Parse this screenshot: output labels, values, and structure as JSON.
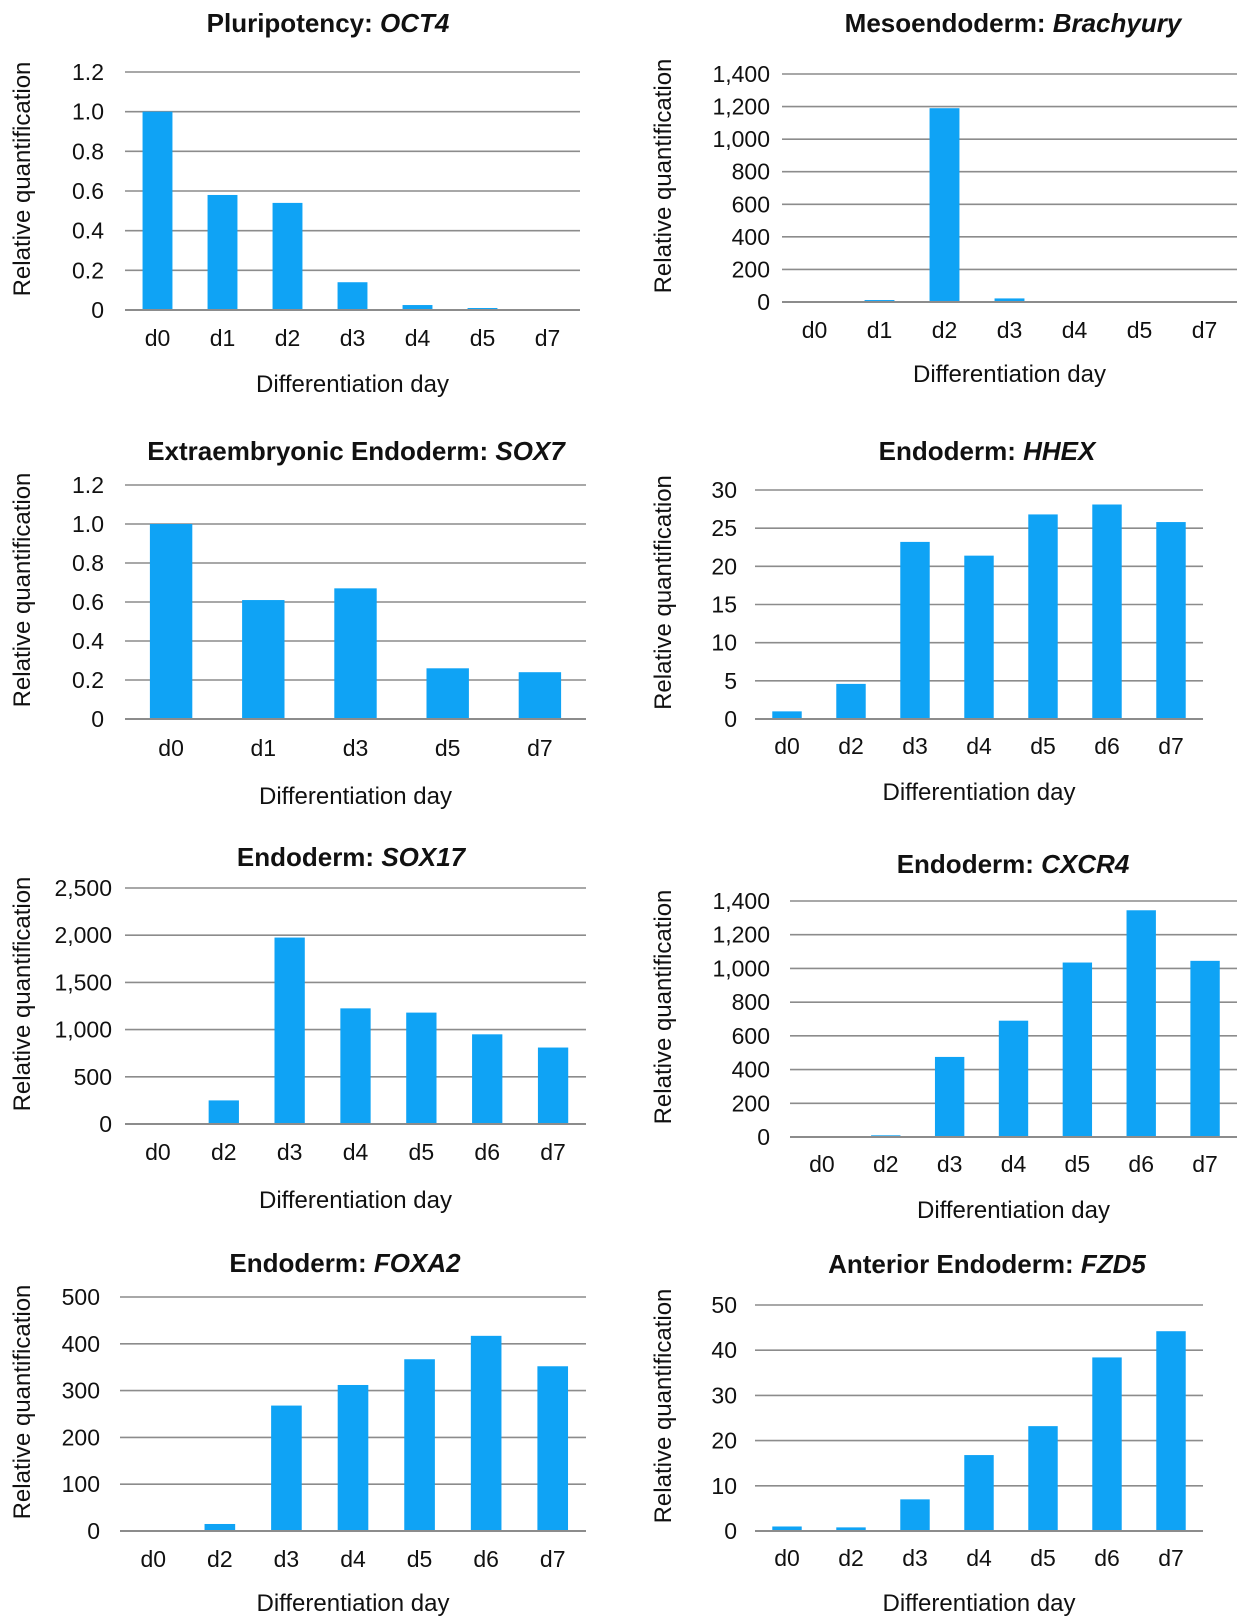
{
  "colors": {
    "bar": "#0fa3f5",
    "grid": "#8c8c8c",
    "text": "#111111"
  },
  "chart_data": [
    {
      "type": "bar",
      "title_prefix": "Pluripotency: ",
      "title_gene": "OCT4",
      "xlabel": "Differentiation day",
      "ylabel": "Relative quantification",
      "categories": [
        "d0",
        "d1",
        "d2",
        "d3",
        "d4",
        "d5",
        "d7"
      ],
      "values": [
        1.0,
        0.58,
        0.54,
        0.14,
        0.025,
        0.01,
        0.004
      ],
      "ylim": [
        0,
        1.2
      ],
      "yticks": [
        "0",
        "0.2",
        "0.4",
        "0.6",
        "0.8",
        "1.0",
        "1.2"
      ],
      "grid": true
    },
    {
      "type": "bar",
      "title_prefix": "Mesoendoderm: ",
      "title_gene": "Brachyury",
      "xlabel": "Differentiation day",
      "ylabel": "Relative quantification",
      "categories": [
        "d0",
        "d1",
        "d2",
        "d3",
        "d4",
        "d5",
        "d7"
      ],
      "values": [
        1,
        12,
        1190,
        22,
        4,
        1,
        1
      ],
      "ylim": [
        0,
        1400
      ],
      "yticks": [
        "0",
        "200",
        "400",
        "600",
        "800",
        "1,000",
        "1,200",
        "1,400"
      ],
      "grid": true
    },
    {
      "type": "bar",
      "title_prefix": "Extraembryonic Endoderm: ",
      "title_gene": "SOX7",
      "xlabel": "Differentiation day",
      "ylabel": "Relative quantification",
      "categories": [
        "d0",
        "d1",
        "d3",
        "d5",
        "d7"
      ],
      "values": [
        1.0,
        0.61,
        0.67,
        0.26,
        0.24
      ],
      "ylim": [
        0,
        1.2
      ],
      "yticks": [
        "0",
        "0.2",
        "0.4",
        "0.6",
        "0.8",
        "1.0",
        "1.2"
      ],
      "grid": true
    },
    {
      "type": "bar",
      "title_prefix": "Endoderm: ",
      "title_gene": "HHEX",
      "xlabel": "Differentiation day",
      "ylabel": "Relative quantification",
      "categories": [
        "d0",
        "d2",
        "d3",
        "d4",
        "d5",
        "d6",
        "d7"
      ],
      "values": [
        1,
        4.6,
        23.2,
        21.4,
        26.8,
        28.1,
        25.8
      ],
      "ylim": [
        0,
        30
      ],
      "yticks": [
        "0",
        "5",
        "10",
        "15",
        "20",
        "25",
        "30"
      ],
      "grid": true
    },
    {
      "type": "bar",
      "title_prefix": "Endoderm: ",
      "title_gene": "SOX17",
      "xlabel": "Differentiation day",
      "ylabel": "Relative quantification",
      "categories": [
        "d0",
        "d2",
        "d3",
        "d4",
        "d5",
        "d6",
        "d7"
      ],
      "values": [
        5,
        250,
        1975,
        1225,
        1180,
        950,
        810
      ],
      "ylim": [
        0,
        2500
      ],
      "yticks": [
        "0",
        "500",
        "1,000",
        "1,500",
        "2,000",
        "2,500"
      ],
      "grid": true
    },
    {
      "type": "bar",
      "title_prefix": "Endoderm: ",
      "title_gene": "CXCR4",
      "xlabel": "Differentiation day",
      "ylabel": "Relative quantification",
      "categories": [
        "d0",
        "d2",
        "d3",
        "d4",
        "d5",
        "d6",
        "d7"
      ],
      "values": [
        1,
        10,
        475,
        690,
        1035,
        1345,
        1045
      ],
      "ylim": [
        0,
        1400
      ],
      "yticks": [
        "0",
        "200",
        "400",
        "600",
        "800",
        "1,000",
        "1,200",
        "1,400"
      ],
      "grid": true
    },
    {
      "type": "bar",
      "title_prefix": "Endoderm: ",
      "title_gene": "FOXA2",
      "xlabel": "Differentiation day",
      "ylabel": "Relative quantification",
      "categories": [
        "d0",
        "d2",
        "d3",
        "d4",
        "d5",
        "d6",
        "d7"
      ],
      "values": [
        1,
        15,
        268,
        312,
        367,
        417,
        352
      ],
      "ylim": [
        0,
        500
      ],
      "yticks": [
        "0",
        "100",
        "200",
        "300",
        "400",
        "500"
      ],
      "grid": true
    },
    {
      "type": "bar",
      "title_prefix": "Anterior Endoderm: ",
      "title_gene": "FZD5",
      "xlabel": "Differentiation day",
      "ylabel": "Relative quantification",
      "categories": [
        "d0",
        "d2",
        "d3",
        "d4",
        "d5",
        "d6",
        "d7"
      ],
      "values": [
        1,
        0.8,
        7,
        16.8,
        23.2,
        38.4,
        44.2
      ],
      "ylim": [
        0,
        50
      ],
      "yticks": [
        "0",
        "10",
        "20",
        "30",
        "40",
        "50"
      ],
      "grid": true
    }
  ]
}
